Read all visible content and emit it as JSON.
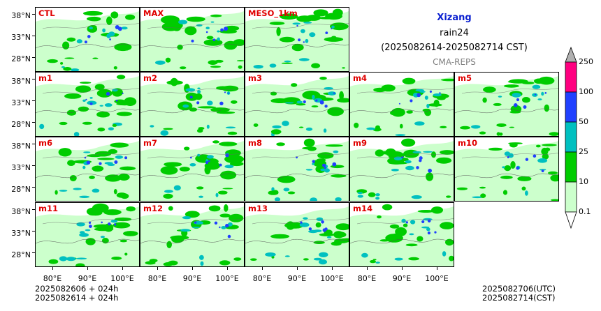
{
  "title": {
    "region": "Xizang",
    "variable": "rain24",
    "period": "(2025082614-2025082714 CST)",
    "source": "CMA-REPS"
  },
  "panels": [
    {
      "label": "CTL"
    },
    {
      "label": "MAX"
    },
    {
      "label": "MESO_1km"
    },
    {
      "label": "m1"
    },
    {
      "label": "m2"
    },
    {
      "label": "m3"
    },
    {
      "label": "m4"
    },
    {
      "label": "m5"
    },
    {
      "label": "m6"
    },
    {
      "label": "m7"
    },
    {
      "label": "m8"
    },
    {
      "label": "m9"
    },
    {
      "label": "m10"
    },
    {
      "label": "m11"
    },
    {
      "label": "m12"
    },
    {
      "label": "m13"
    },
    {
      "label": "m14"
    }
  ],
  "axes": {
    "lat_labels": [
      "38°N",
      "33°N",
      "28°N"
    ],
    "lon_labels": [
      "80°E",
      "90°E",
      "100°E"
    ]
  },
  "colorbar": {
    "levels": [
      "0.1",
      "10",
      "25",
      "50",
      "100",
      "250"
    ],
    "colors": [
      "#ccffcc",
      "#00cc00",
      "#00c0c0",
      "#2040ff",
      "#ff0080",
      "#b0b0b0"
    ]
  },
  "footer": {
    "left_line1": "2025082606  +  024h",
    "left_line2": "2025082614  +  024h",
    "right_line1": "2025082706(UTC)",
    "right_line2": "2025082714(CST)"
  }
}
